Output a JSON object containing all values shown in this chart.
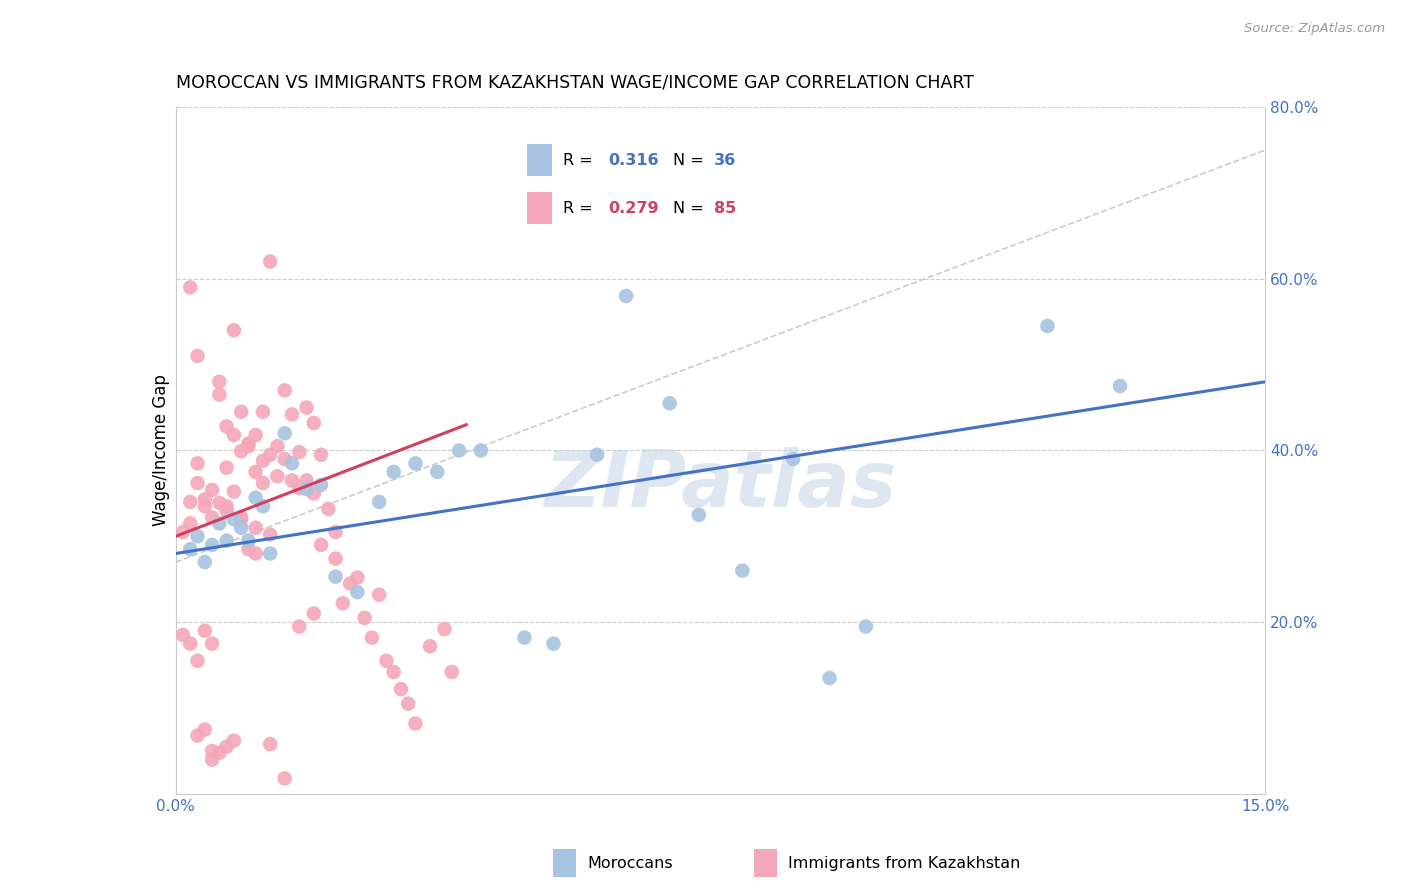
{
  "title": "MOROCCAN VS IMMIGRANTS FROM KAZAKHSTAN WAGE/INCOME GAP CORRELATION CHART",
  "source": "Source: ZipAtlas.com",
  "ylabel": "Wage/Income Gap",
  "x_min": 0.0,
  "x_max": 0.15,
  "y_min": 0.0,
  "y_max": 0.8,
  "x_tick_positions": [
    0.0,
    0.03,
    0.06,
    0.09,
    0.12,
    0.15
  ],
  "x_tick_labels": [
    "0.0%",
    "",
    "",
    "",
    "",
    "15.0%"
  ],
  "y_tick_positions": [
    0.0,
    0.2,
    0.4,
    0.6,
    0.8
  ],
  "y_tick_labels": [
    "",
    "20.0%",
    "40.0%",
    "60.0%",
    "80.0%"
  ],
  "moroccan_color": "#a8c4e0",
  "kazakh_color": "#f4a7b9",
  "moroccan_R": 0.316,
  "moroccan_N": 36,
  "kazakh_R": 0.279,
  "kazakh_N": 85,
  "trendline_moroccan_color": "#4472c4",
  "trendline_kazakh_color": "#d04060",
  "trendline_diagonal_color": "#cccccc",
  "watermark": "ZIPatlas",
  "watermark_color": "#c8d8e8",
  "legend_moroccan_label": "Moroccans",
  "legend_kazakh_label": "Immigrants from Kazakhstan",
  "mor_x": [
    0.002,
    0.003,
    0.005,
    0.006,
    0.007,
    0.008,
    0.009,
    0.01,
    0.012,
    0.013,
    0.015,
    0.016,
    0.018,
    0.02,
    0.022,
    0.025,
    0.028,
    0.03,
    0.033,
    0.036,
    0.039,
    0.042,
    0.048,
    0.052,
    0.058,
    0.062,
    0.068,
    0.072,
    0.078,
    0.085,
    0.09,
    0.095,
    0.12,
    0.13,
    0.004,
    0.011
  ],
  "mor_y": [
    0.285,
    0.3,
    0.29,
    0.315,
    0.295,
    0.32,
    0.31,
    0.295,
    0.335,
    0.28,
    0.42,
    0.385,
    0.355,
    0.36,
    0.253,
    0.235,
    0.34,
    0.375,
    0.385,
    0.375,
    0.4,
    0.4,
    0.182,
    0.175,
    0.395,
    0.58,
    0.455,
    0.325,
    0.26,
    0.39,
    0.135,
    0.195,
    0.545,
    0.475,
    0.27,
    0.345
  ],
  "kaz_x": [
    0.001,
    0.002,
    0.002,
    0.003,
    0.003,
    0.004,
    0.004,
    0.005,
    0.005,
    0.006,
    0.006,
    0.007,
    0.007,
    0.008,
    0.008,
    0.009,
    0.009,
    0.01,
    0.01,
    0.011,
    0.011,
    0.012,
    0.012,
    0.013,
    0.013,
    0.014,
    0.014,
    0.015,
    0.015,
    0.016,
    0.016,
    0.017,
    0.017,
    0.018,
    0.018,
    0.019,
    0.019,
    0.02,
    0.02,
    0.021,
    0.022,
    0.022,
    0.023,
    0.024,
    0.025,
    0.026,
    0.027,
    0.028,
    0.029,
    0.03,
    0.031,
    0.032,
    0.033,
    0.035,
    0.037,
    0.038,
    0.002,
    0.003,
    0.005,
    0.007,
    0.009,
    0.011,
    0.013,
    0.015,
    0.017,
    0.019,
    0.001,
    0.002,
    0.003,
    0.004,
    0.005,
    0.006,
    0.007,
    0.008,
    0.009,
    0.01,
    0.011,
    0.012,
    0.013,
    0.003,
    0.004,
    0.005,
    0.006,
    0.007,
    0.008
  ],
  "kaz_y": [
    0.305,
    0.315,
    0.34,
    0.362,
    0.385,
    0.343,
    0.335,
    0.354,
    0.322,
    0.339,
    0.465,
    0.33,
    0.38,
    0.352,
    0.54,
    0.322,
    0.445,
    0.405,
    0.285,
    0.375,
    0.28,
    0.362,
    0.445,
    0.395,
    0.62,
    0.405,
    0.37,
    0.39,
    0.47,
    0.365,
    0.442,
    0.356,
    0.398,
    0.45,
    0.365,
    0.432,
    0.35,
    0.395,
    0.29,
    0.332,
    0.274,
    0.305,
    0.222,
    0.245,
    0.252,
    0.205,
    0.182,
    0.232,
    0.155,
    0.142,
    0.122,
    0.105,
    0.082,
    0.172,
    0.192,
    0.142,
    0.59,
    0.51,
    0.04,
    0.335,
    0.32,
    0.31,
    0.302,
    0.018,
    0.195,
    0.21,
    0.185,
    0.175,
    0.155,
    0.19,
    0.175,
    0.48,
    0.428,
    0.418,
    0.399,
    0.408,
    0.418,
    0.388,
    0.058,
    0.068,
    0.075,
    0.05,
    0.048,
    0.055,
    0.062
  ]
}
